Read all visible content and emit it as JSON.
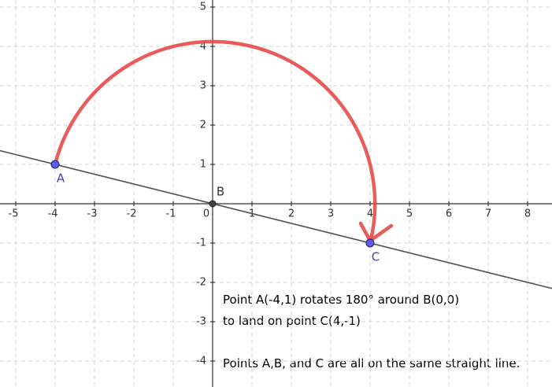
{
  "chart_data": {
    "type": "scatter",
    "xlim": [
      -5.4,
      8.62
    ],
    "ylim": [
      -4.66,
      5.18
    ],
    "xticks": [
      -5,
      -4,
      -3,
      -2,
      -1,
      0,
      1,
      2,
      3,
      4,
      5,
      6,
      7,
      8
    ],
    "yticks": [
      -4,
      -3,
      -2,
      -1,
      1,
      2,
      3,
      4,
      5
    ],
    "grid": true,
    "points": [
      {
        "label": "A",
        "x": -4,
        "y": 1,
        "color": "#5b5bf0"
      },
      {
        "label": "B",
        "x": 0,
        "y": 0,
        "color": "#444444"
      },
      {
        "label": "C",
        "x": 4,
        "y": -1,
        "color": "#5b5bf0"
      }
    ],
    "line_color": "#555555",
    "arc_color": "#e84a4a",
    "annotations": [
      "Point A(-4,1) rotates 180° around B(0,0)",
      "to land on point C(4,-1)",
      "Points A,B, and C are all on the same straight line."
    ]
  }
}
